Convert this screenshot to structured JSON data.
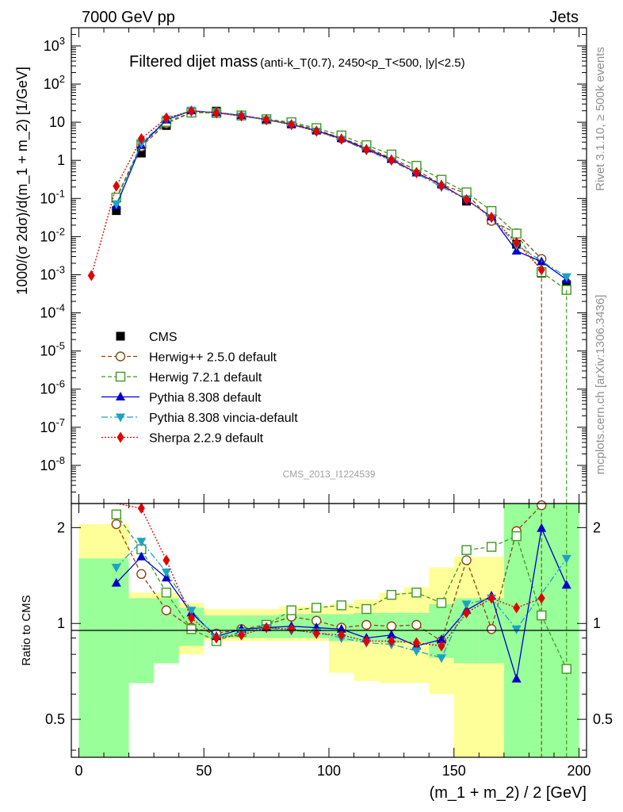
{
  "header": {
    "left": "7000 GeV pp",
    "right": "Jets"
  },
  "side": {
    "rivet": "Rivet 3.1.10, ≥ 500k events",
    "mcplots": "mcplots.cern.ch [arXiv:1306.3436]"
  },
  "colors": {
    "cms": "#000000",
    "herwigpp": "#8b4513",
    "herwig7": "#3c9a1e",
    "pythia": "#0000cc",
    "vincia": "#1ca3c4",
    "sherpa": "#e00000",
    "band_inner": "#99ff99",
    "band_outer": "#ffff99"
  },
  "chart_data": [
    {
      "type": "line",
      "title": "Filtered dijet mass",
      "title_detail": "(anti-k_T(0.7), 2450<p_T<500, |y|<2.5)",
      "watermark": "CMS_2013_I1224539",
      "ylabel": "1000/(σ 2dσ)/d(m_1 + m_2) [1/GeV]",
      "yscale": "log",
      "ylim": [
        1e-09,
        3000
      ],
      "xlim": [
        -3,
        203
      ],
      "x": [
        5,
        15,
        25,
        35,
        45,
        55,
        65,
        75,
        85,
        95,
        105,
        115,
        125,
        135,
        145,
        155,
        165,
        175,
        185,
        195
      ],
      "series": [
        {
          "name": "CMS",
          "key": "cms",
          "values": [
            null,
            0.048,
            1.55,
            8.2,
            18.5,
            19.5,
            15.5,
            12.0,
            9.0,
            6.2,
            3.9,
            2.2,
            1.15,
            0.55,
            0.26,
            0.085,
            0.027,
            0.0063,
            0.0011,
            0.00055
          ]
        },
        {
          "name": "Herwig++ 2.5.0 default",
          "key": "herwigpp",
          "values": [
            null,
            0.1,
            2.3,
            9.3,
            17.8,
            18.3,
            15.0,
            11.8,
            9.3,
            6.4,
            3.8,
            2.2,
            1.12,
            0.56,
            0.23,
            0.135,
            0.026,
            0.0122,
            0.0026,
            null
          ]
        },
        {
          "name": "Herwig 7.2.1 default",
          "key": "herwig7",
          "values": [
            null,
            0.105,
            2.65,
            10.2,
            17.9,
            17.4,
            15.0,
            12.0,
            10.0,
            7.0,
            4.5,
            2.5,
            1.42,
            0.72,
            0.31,
            0.145,
            0.047,
            0.012,
            0.00117,
            0.0004
          ]
        },
        {
          "name": "Pythia 8.308 default",
          "key": "pythia",
          "values": [
            null,
            0.065,
            2.5,
            11.5,
            20.0,
            17.8,
            15.0,
            11.7,
            8.8,
            6.0,
            3.75,
            2.0,
            1.06,
            0.47,
            0.23,
            0.093,
            0.033,
            0.0042,
            0.0022,
            0.00075
          ]
        },
        {
          "name": "Pythia 8.308 vincia-default",
          "key": "vincia",
          "values": [
            null,
            0.072,
            2.8,
            12.0,
            20.5,
            17.5,
            14.5,
            11.6,
            8.6,
            5.8,
            3.5,
            1.86,
            0.97,
            0.45,
            0.2,
            0.097,
            0.031,
            0.006,
            null,
            0.00088
          ]
        },
        {
          "name": "Sherpa 2.2.9 default",
          "key": "sherpa",
          "values": [
            0.00095,
            0.21,
            3.7,
            13.0,
            19.5,
            17.6,
            14.5,
            11.6,
            8.6,
            5.8,
            3.6,
            1.9,
            1.02,
            0.48,
            0.22,
            0.094,
            0.032,
            0.007,
            0.00135,
            null
          ]
        }
      ]
    },
    {
      "type": "line",
      "xlabel": "(m_1 + m_2) / 2 [GeV]",
      "ylabel": "Ratio to CMS",
      "yscale": "log",
      "ylim": [
        0.38,
        2.38
      ],
      "yticks": [
        0.5,
        1,
        2
      ],
      "xticks": [
        0,
        50,
        100,
        150,
        200
      ],
      "xlim": [
        -3,
        203
      ],
      "x": [
        15,
        25,
        35,
        45,
        55,
        65,
        75,
        85,
        95,
        105,
        115,
        125,
        135,
        145,
        155,
        165,
        175,
        185,
        195
      ],
      "band_edges": [
        0,
        10,
        20,
        30,
        40,
        50,
        60,
        70,
        80,
        90,
        100,
        110,
        120,
        130,
        140,
        150,
        160,
        170,
        180,
        190,
        200
      ],
      "band_inner": [
        [
          0.35,
          1.6
        ],
        [
          0.35,
          1.6
        ],
        [
          0.65,
          1.2
        ],
        [
          0.75,
          1.2
        ],
        [
          0.85,
          1.12
        ],
        [
          0.9,
          1.06
        ],
        [
          0.9,
          1.06
        ],
        [
          0.9,
          1.06
        ],
        [
          0.9,
          1.07
        ],
        [
          0.9,
          1.07
        ],
        [
          0.88,
          1.07
        ],
        [
          0.88,
          1.08
        ],
        [
          0.87,
          1.08
        ],
        [
          0.87,
          1.08
        ],
        [
          0.78,
          1.15
        ],
        [
          0.75,
          1.2
        ],
        [
          0.75,
          1.2
        ],
        [
          0.35,
          2.4
        ],
        [
          0.35,
          2.4
        ],
        [
          0.35,
          2.4
        ]
      ],
      "band_outer": [
        [
          0.35,
          2.05
        ],
        [
          0.49,
          2.05
        ],
        [
          0.78,
          1.25
        ],
        [
          0.82,
          1.25
        ],
        [
          0.8,
          1.16
        ],
        [
          0.88,
          1.11
        ],
        [
          0.88,
          1.11
        ],
        [
          0.88,
          1.11
        ],
        [
          0.88,
          1.13
        ],
        [
          0.88,
          1.13
        ],
        [
          0.7,
          1.15
        ],
        [
          0.66,
          1.19
        ],
        [
          0.65,
          1.25
        ],
        [
          0.65,
          1.3
        ],
        [
          0.6,
          1.5
        ],
        [
          0.35,
          1.62
        ],
        [
          0.35,
          1.62
        ],
        [
          0.35,
          2.4
        ],
        [
          0.35,
          2.4
        ],
        [
          0.35,
          2.4
        ]
      ],
      "series": [
        {
          "name": "Herwig++ 2.5.0 default",
          "key": "herwigpp",
          "values": [
            2.05,
            1.43,
            1.1,
            0.97,
            0.93,
            0.96,
            0.99,
            1.05,
            1.02,
            0.97,
            0.99,
            0.98,
            0.99,
            0.88,
            1.58,
            0.96,
            1.95,
            2.35,
            null
          ]
        },
        {
          "name": "Herwig 7.2.1 default",
          "key": "herwig7",
          "values": [
            2.2,
            1.71,
            1.25,
            0.96,
            0.88,
            0.94,
            0.99,
            1.1,
            1.12,
            1.14,
            1.11,
            1.23,
            1.25,
            1.16,
            1.7,
            1.74,
            1.88,
            1.06,
            0.72
          ]
        },
        {
          "name": "Pythia 8.308 default",
          "key": "pythia",
          "values": [
            1.34,
            1.62,
            1.39,
            1.08,
            0.91,
            0.96,
            0.97,
            0.98,
            0.97,
            0.96,
            0.9,
            0.92,
            0.85,
            0.89,
            1.1,
            1.22,
            0.67,
            1.99,
            1.32
          ]
        },
        {
          "name": "Pythia 8.308 vincia-default",
          "key": "vincia",
          "values": [
            1.5,
            1.81,
            1.45,
            1.1,
            0.9,
            0.94,
            0.97,
            0.95,
            0.94,
            0.9,
            0.87,
            0.86,
            0.82,
            0.78,
            1.15,
            1.2,
            0.96,
            null,
            1.6
          ]
        },
        {
          "name": "Sherpa 2.2.9 default",
          "key": "sherpa",
          "values": [
            4.2,
            2.3,
            1.58,
            1.04,
            0.9,
            0.92,
            0.97,
            0.96,
            0.93,
            0.92,
            0.88,
            0.88,
            0.87,
            0.85,
            1.08,
            1.2,
            1.12,
            1.2,
            null
          ]
        }
      ]
    }
  ]
}
